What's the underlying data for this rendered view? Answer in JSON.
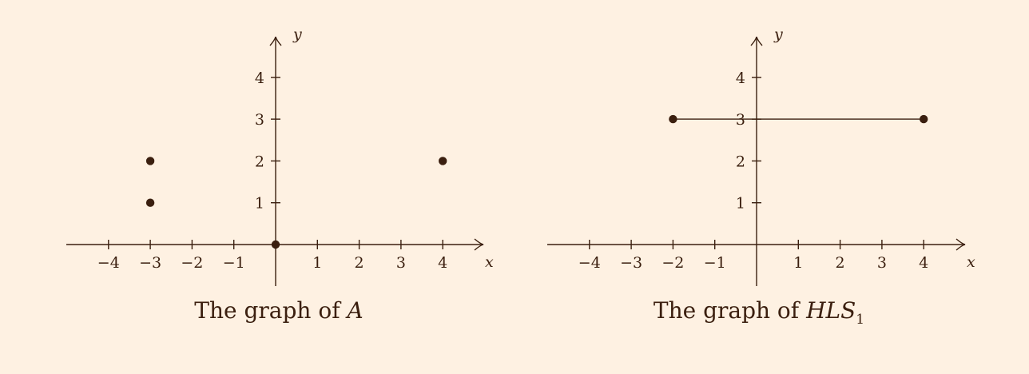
{
  "colors": {
    "background": "#fef1e2",
    "ink": "#3b1f0f"
  },
  "chart_data": [
    {
      "type": "scatter",
      "title": "",
      "xlabel": "x",
      "ylabel": "y",
      "xlim": [
        -5,
        5
      ],
      "ylim": [
        -1,
        5
      ],
      "xticks": [
        "−4",
        "−3",
        "−2",
        "−1",
        "1",
        "2",
        "3",
        "4"
      ],
      "yticks": [
        "1",
        "2",
        "3",
        "4"
      ],
      "grid": false,
      "points": [
        {
          "x": -3,
          "y": 2
        },
        {
          "x": -3,
          "y": 1
        },
        {
          "x": 0,
          "y": 0
        },
        {
          "x": 4,
          "y": 2
        }
      ],
      "segments": [],
      "caption": {
        "prefix": "The graph of ",
        "math": "A",
        "sub": ""
      }
    },
    {
      "type": "line",
      "title": "",
      "xlabel": "x",
      "ylabel": "y",
      "xlim": [
        -5,
        5
      ],
      "ylim": [
        -1,
        5
      ],
      "xticks": [
        "−4",
        "−3",
        "−2",
        "−1",
        "1",
        "2",
        "3",
        "4"
      ],
      "yticks": [
        "1",
        "2",
        "3",
        "4"
      ],
      "grid": false,
      "points": [
        {
          "x": -2,
          "y": 3
        },
        {
          "x": 4,
          "y": 3
        }
      ],
      "segments": [
        {
          "x1": -2,
          "y1": 3,
          "x2": 4,
          "y2": 3
        }
      ],
      "caption": {
        "prefix": "The graph of ",
        "math": "HLS",
        "sub": "1"
      }
    }
  ]
}
